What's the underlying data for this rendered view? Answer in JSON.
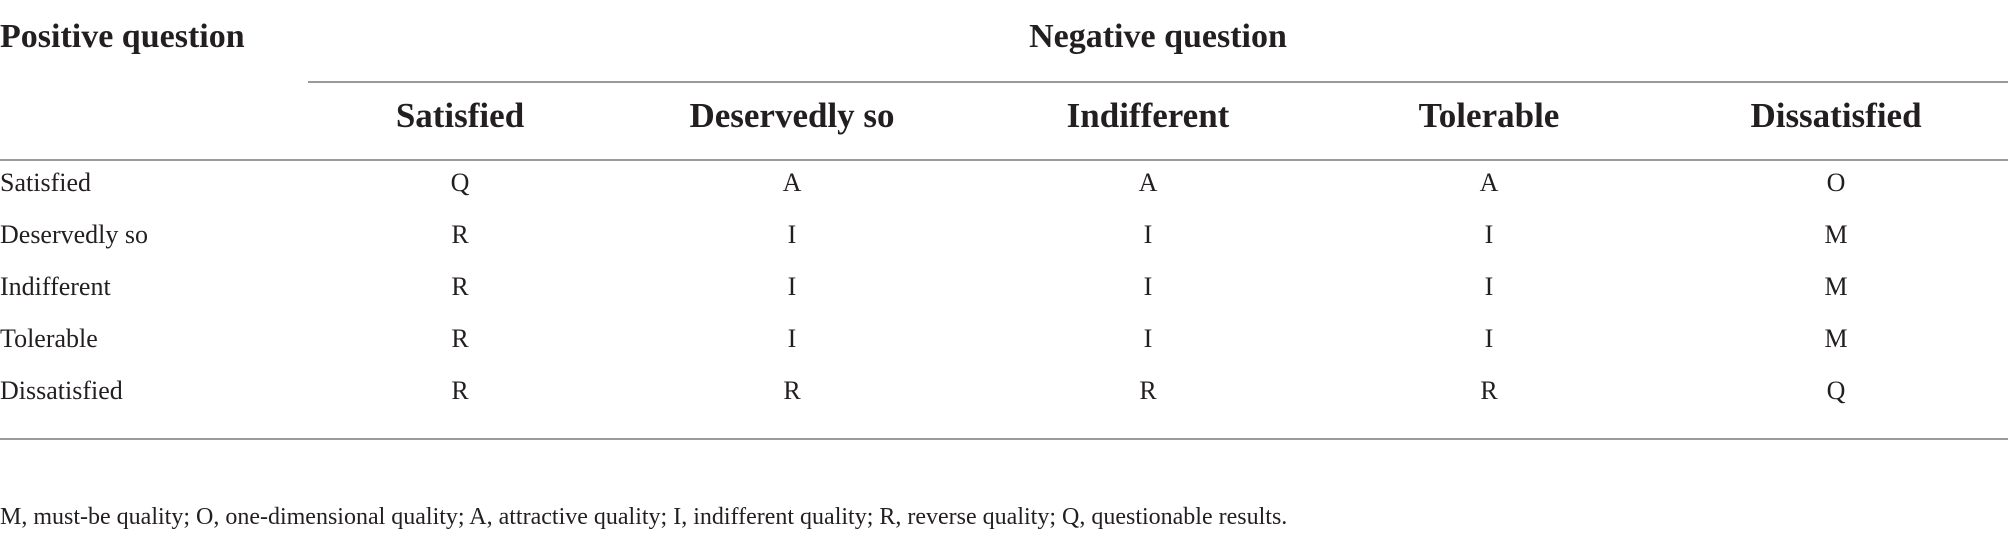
{
  "table": {
    "corner_header": "Positive question",
    "group_header": "Negative question",
    "columns": [
      "Satisfied",
      "Deservedly so",
      "Indifferent",
      "Tolerable",
      "Dissatisfied"
    ],
    "rows": [
      {
        "label": "Satisfied",
        "cells": [
          "Q",
          "A",
          "A",
          "A",
          "O"
        ]
      },
      {
        "label": "Deservedly so",
        "cells": [
          "R",
          "I",
          "I",
          "I",
          "M"
        ]
      },
      {
        "label": "Indifferent",
        "cells": [
          "R",
          "I",
          "I",
          "I",
          "M"
        ]
      },
      {
        "label": "Tolerable",
        "cells": [
          "R",
          "I",
          "I",
          "I",
          "M"
        ]
      },
      {
        "label": "Dissatisfied",
        "cells": [
          "R",
          "R",
          "R",
          "R",
          "Q"
        ]
      }
    ]
  },
  "footnote": "M, must-be quality; O, one-dimensional quality; A, attractive quality; I, indifferent quality; R, reverse quality; Q, questionable results."
}
